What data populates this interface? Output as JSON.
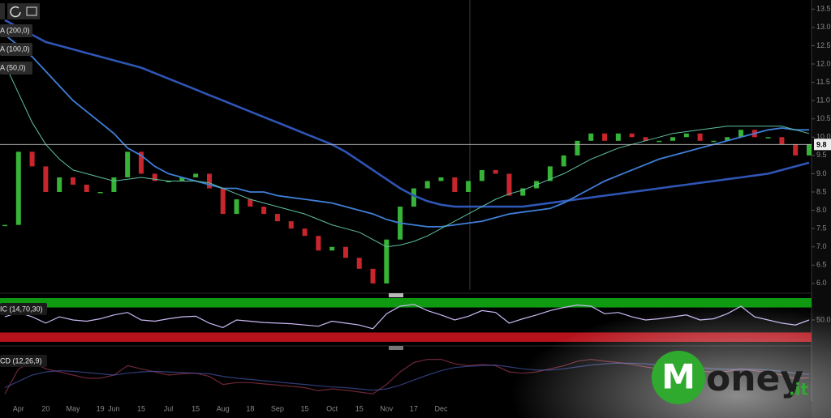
{
  "chart_data": [
    {
      "type": "line",
      "categories": [
        null,
        "Apr",
        null,
        "20",
        null,
        "May",
        null,
        "19",
        "Jun",
        null,
        "15",
        null,
        "Jul",
        null,
        "15",
        null,
        "Aug",
        null,
        "18",
        null,
        "Sep",
        null,
        "15",
        null,
        "Oct",
        null,
        "15",
        null,
        "Nov",
        null,
        "17",
        null,
        "Dec",
        null,
        null,
        null,
        null,
        null,
        null,
        null,
        null,
        null,
        null,
        null,
        null,
        null,
        null,
        null,
        null,
        null,
        null,
        null,
        null,
        null,
        null,
        null,
        null,
        null,
        null,
        null
      ],
      "price": {
        "up_color": "#37b437",
        "down_color": "#c8262c",
        "values": [
          7.6,
          9.6,
          9.2,
          8.5,
          8.9,
          8.7,
          8.5,
          8.5,
          8.9,
          9.6,
          9.0,
          8.8,
          8.8,
          8.9,
          9.0,
          8.6,
          7.9,
          8.3,
          8.1,
          7.9,
          7.7,
          7.5,
          7.3,
          6.9,
          7.0,
          6.7,
          6.4,
          6.0,
          7.2,
          8.1,
          8.6,
          8.8,
          8.9,
          8.5,
          8.8,
          9.1,
          9.0,
          8.4,
          8.6,
          8.8,
          9.2,
          9.5,
          9.9,
          10.1,
          9.9,
          10.1,
          10.0,
          9.9,
          9.9,
          10.0,
          10.1,
          9.9,
          9.9,
          10.0,
          10.2,
          10.0,
          10.0,
          9.8,
          9.5,
          9.8
        ]
      },
      "series": [
        {
          "name": "A (200,0)",
          "color": "#2f55b5",
          "values": [
            13.2,
            13.0,
            12.8,
            12.6,
            12.5,
            12.4,
            12.3,
            12.2,
            12.1,
            12.0,
            11.9,
            11.75,
            11.6,
            11.45,
            11.3,
            11.15,
            11.0,
            10.85,
            10.7,
            10.55,
            10.4,
            10.25,
            10.1,
            9.95,
            9.8,
            9.6,
            9.35,
            9.1,
            8.85,
            8.6,
            8.4,
            8.25,
            8.15,
            8.1,
            8.1,
            8.1,
            8.1,
            8.1,
            8.1,
            8.15,
            8.2,
            8.25,
            8.3,
            8.35,
            8.4,
            8.45,
            8.5,
            8.55,
            8.6,
            8.65,
            8.7,
            8.75,
            8.8,
            8.85,
            8.9,
            8.95,
            9.0,
            9.1,
            9.2,
            9.3
          ]
        },
        {
          "name": "A (100,0)",
          "color": "#3f7fd8",
          "values": [
            12.8,
            12.5,
            12.2,
            11.8,
            11.4,
            11.0,
            10.7,
            10.4,
            10.1,
            9.7,
            9.5,
            9.2,
            9.0,
            8.9,
            8.8,
            8.7,
            8.6,
            8.6,
            8.5,
            8.5,
            8.4,
            8.35,
            8.3,
            8.25,
            8.2,
            8.1,
            8.0,
            7.9,
            7.75,
            7.65,
            7.6,
            7.55,
            7.55,
            7.6,
            7.65,
            7.7,
            7.8,
            7.9,
            7.95,
            8.0,
            8.05,
            8.2,
            8.4,
            8.6,
            8.8,
            8.95,
            9.1,
            9.25,
            9.4,
            9.5,
            9.6,
            9.7,
            9.8,
            9.9,
            10.0,
            10.1,
            10.2,
            10.25,
            10.2,
            10.2
          ]
        },
        {
          "name": "A (50,0)",
          "color": "#5fc0a0",
          "values": [
            12.0,
            11.2,
            10.4,
            9.8,
            9.4,
            9.1,
            9.0,
            8.9,
            8.8,
            8.85,
            8.9,
            8.85,
            8.8,
            8.8,
            8.8,
            8.75,
            8.6,
            8.45,
            8.3,
            8.2,
            8.1,
            8.0,
            7.9,
            7.75,
            7.6,
            7.5,
            7.4,
            7.2,
            7.0,
            7.05,
            7.15,
            7.3,
            7.5,
            7.7,
            7.9,
            8.1,
            8.3,
            8.45,
            8.55,
            8.7,
            8.85,
            9.0,
            9.2,
            9.4,
            9.55,
            9.7,
            9.8,
            9.9,
            10.0,
            10.1,
            10.15,
            10.2,
            10.25,
            10.3,
            10.3,
            10.3,
            10.3,
            10.3,
            10.2,
            10.1
          ]
        }
      ],
      "current_price": {
        "value": 9.8,
        "label": "9.8"
      },
      "ylim": [
        5.82,
        13.75
      ],
      "yticks": [
        {
          "value": 6,
          "label": "6.0"
        },
        6.5,
        {
          "value": 7,
          "label": "7.0"
        },
        7.5,
        {
          "value": 8,
          "label": "8.0"
        },
        8.5,
        {
          "value": 9,
          "label": "9.0"
        },
        9.5,
        {
          "value": 10,
          "label": "10.0"
        },
        10.5,
        {
          "value": 11,
          "label": "11.0"
        },
        11.5,
        {
          "value": 12,
          "label": "12.0"
        },
        12.5,
        {
          "value": 13,
          "label": "13.0"
        },
        13.5
      ],
      "grid": false
    },
    {
      "type": "line",
      "title": "IC (14,70,30)",
      "bands": {
        "upper": 70,
        "lower": 30,
        "upper_color": "#0f9a12",
        "lower_color": "#b5121b"
      },
      "series": [
        {
          "color": "#c9b8f2",
          "values": [
            55,
            62,
            55,
            45,
            55,
            50,
            48,
            52,
            58,
            62,
            50,
            48,
            52,
            55,
            56,
            45,
            38,
            50,
            48,
            46,
            45,
            44,
            42,
            40,
            48,
            45,
            42,
            36,
            60,
            72,
            75,
            65,
            58,
            50,
            56,
            65,
            62,
            45,
            52,
            58,
            65,
            70,
            74,
            72,
            60,
            62,
            55,
            50,
            52,
            55,
            58,
            50,
            52,
            60,
            72,
            55,
            50,
            45,
            42,
            50
          ]
        }
      ],
      "ylim": [
        15,
        85
      ],
      "yticks": [
        {
          "value": 50,
          "label": "50.0"
        }
      ],
      "grid": false
    },
    {
      "type": "line",
      "title": "CD (12,26,9)",
      "series": [
        {
          "color": "#b8405c",
          "values": [
            -0.3,
            0.1,
            0.2,
            0.1,
            0.05,
            0.0,
            -0.05,
            -0.05,
            0.0,
            0.15,
            0.1,
            0.05,
            0.0,
            0.02,
            0.03,
            -0.02,
            -0.15,
            -0.12,
            -0.12,
            -0.14,
            -0.16,
            -0.18,
            -0.2,
            -0.25,
            -0.22,
            -0.24,
            -0.27,
            -0.3,
            -0.15,
            0.05,
            0.2,
            0.25,
            0.25,
            0.18,
            0.15,
            0.17,
            0.15,
            0.05,
            0.03,
            0.05,
            0.1,
            0.15,
            0.22,
            0.25,
            0.22,
            0.2,
            0.17,
            0.13,
            0.1,
            0.1,
            0.1,
            0.06,
            0.05,
            0.06,
            0.1,
            0.07,
            0.04,
            0.0,
            -0.06,
            -0.04
          ]
        },
        {
          "color": "#4f62c4",
          "values": [
            -0.2,
            -0.1,
            0.0,
            0.05,
            0.07,
            0.06,
            0.04,
            0.02,
            0.0,
            0.03,
            0.05,
            0.06,
            0.05,
            0.04,
            0.03,
            0.02,
            -0.02,
            -0.05,
            -0.07,
            -0.09,
            -0.11,
            -0.13,
            -0.15,
            -0.17,
            -0.19,
            -0.2,
            -0.22,
            -0.24,
            -0.22,
            -0.16,
            -0.08,
            0.0,
            0.07,
            0.12,
            0.14,
            0.15,
            0.16,
            0.13,
            0.1,
            0.08,
            0.08,
            0.1,
            0.13,
            0.16,
            0.18,
            0.19,
            0.19,
            0.18,
            0.16,
            0.14,
            0.13,
            0.12,
            0.1,
            0.09,
            0.09,
            0.09,
            0.08,
            0.06,
            0.03,
            0.01
          ]
        }
      ],
      "ylim": [
        -0.4,
        0.4
      ],
      "grid": false
    }
  ],
  "logo": {
    "initial": "M",
    "text": "oney",
    "suffix": ".it"
  }
}
